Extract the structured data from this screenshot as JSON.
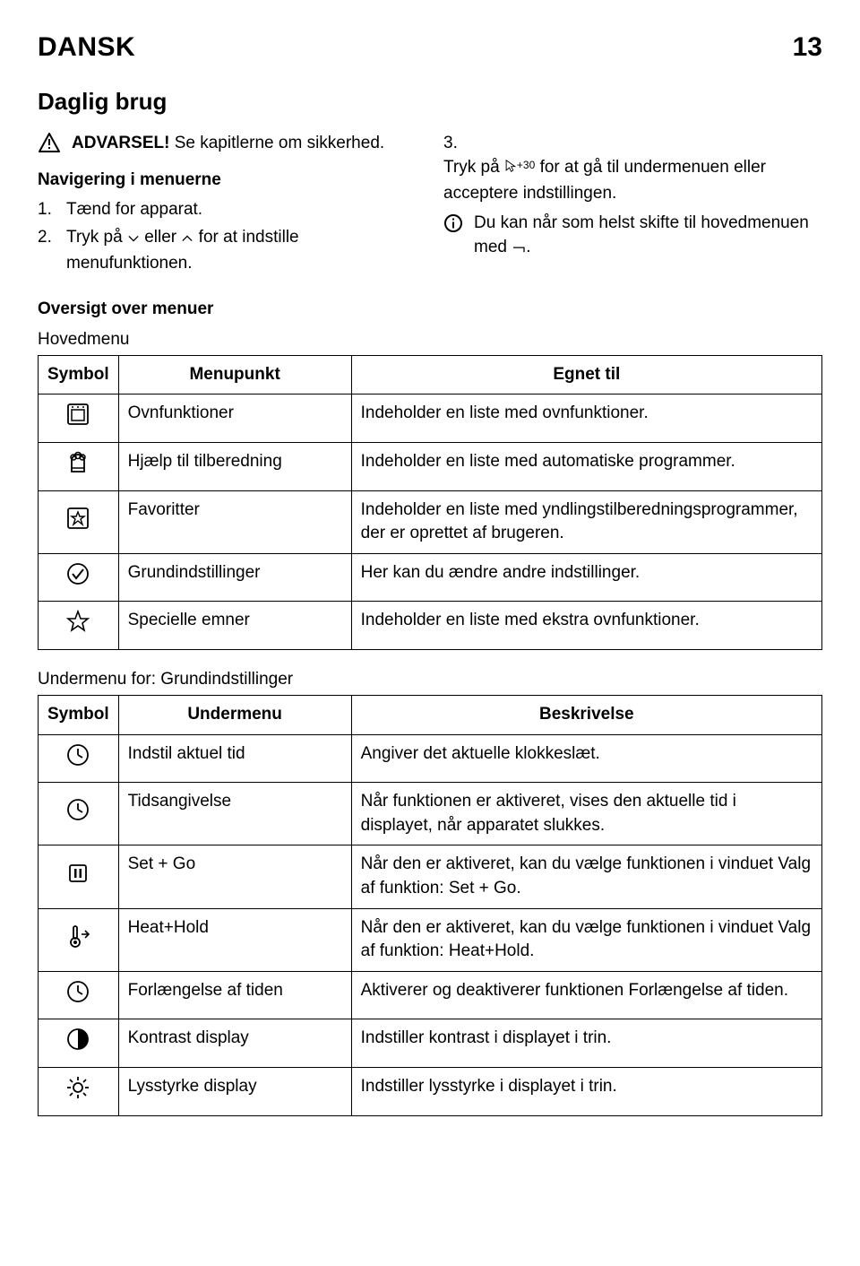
{
  "header": {
    "lang": "DANSK",
    "page": "13"
  },
  "section_title": "Daglig brug",
  "left_col": {
    "warning": {
      "bold": "ADVARSEL!",
      "rest": " Se kapitlerne om sikkerhed."
    },
    "nav_title": "Navigering i menuerne",
    "steps": [
      {
        "n": "1.",
        "text": "Tænd for apparat."
      },
      {
        "n": "2.",
        "pre": "Tryk på ",
        "mid": " eller ",
        "post": " for at indstille menufunktionen."
      }
    ]
  },
  "right_col": {
    "step3": {
      "n": "3.",
      "pre": "Tryk på ",
      "sym": "+30",
      "post": " for at gå til undermenuen eller acceptere indstillingen."
    },
    "info": {
      "pre": "Du kan når som helst skifte til hovedmenuen med ",
      "post": "."
    }
  },
  "overview_title": "Oversigt over menuer",
  "table1": {
    "caption": "Hovedmenu",
    "headers": [
      "Symbol",
      "Menupunkt",
      "Egnet til"
    ],
    "rows": [
      {
        "icon": "oven",
        "c2": "Ovnfunktioner",
        "c3": "Indeholder en liste med ovnfunktioner."
      },
      {
        "icon": "chef",
        "c2": "Hjælp til tilberedning",
        "c3": "Indeholder en liste med automatiske programmer."
      },
      {
        "icon": "star-box",
        "c2": "Favoritter",
        "c3": "Indeholder en liste med yndlingstilberedningsprogrammer, der er oprettet af brugeren."
      },
      {
        "icon": "check-circle",
        "c2": "Grundindstillinger",
        "c3": "Her kan du ændre andre indstillinger."
      },
      {
        "icon": "star",
        "c2": "Specielle emner",
        "c3": "Indeholder en liste med ekstra ovnfunktioner."
      }
    ]
  },
  "table2": {
    "caption": "Undermenu for: Grundindstillinger",
    "headers": [
      "Symbol",
      "Undermenu",
      "Beskrivelse"
    ],
    "rows": [
      {
        "icon": "clock",
        "c2": "Indstil aktuel tid",
        "c3": "Angiver det aktuelle klokkeslæt."
      },
      {
        "icon": "clock",
        "c2": "Tidsangivelse",
        "c3": "Når funktionen er aktiveret, vises den aktuelle tid i displayet, når apparatet slukkes."
      },
      {
        "icon": "pause-box",
        "c2": "Set + Go",
        "c3": "Når den er aktiveret, kan du vælge funktionen i vinduet Valg af funktion: Set + Go."
      },
      {
        "icon": "thermo",
        "c2": "Heat+Hold",
        "c3": "Når den er aktiveret, kan du vælge funktionen i vinduet Valg af funktion: Heat+Hold."
      },
      {
        "icon": "clock",
        "c2": "Forlængelse af tiden",
        "c3": "Aktiverer og deaktiverer funktionen Forlængelse af tiden."
      },
      {
        "icon": "contrast",
        "c2": "Kontrast display",
        "c3": "Indstiller kontrast i displayet i trin."
      },
      {
        "icon": "brightness",
        "c2": "Lysstyrke display",
        "c3": "Indstiller lysstyrke i displayet i trin."
      }
    ]
  }
}
